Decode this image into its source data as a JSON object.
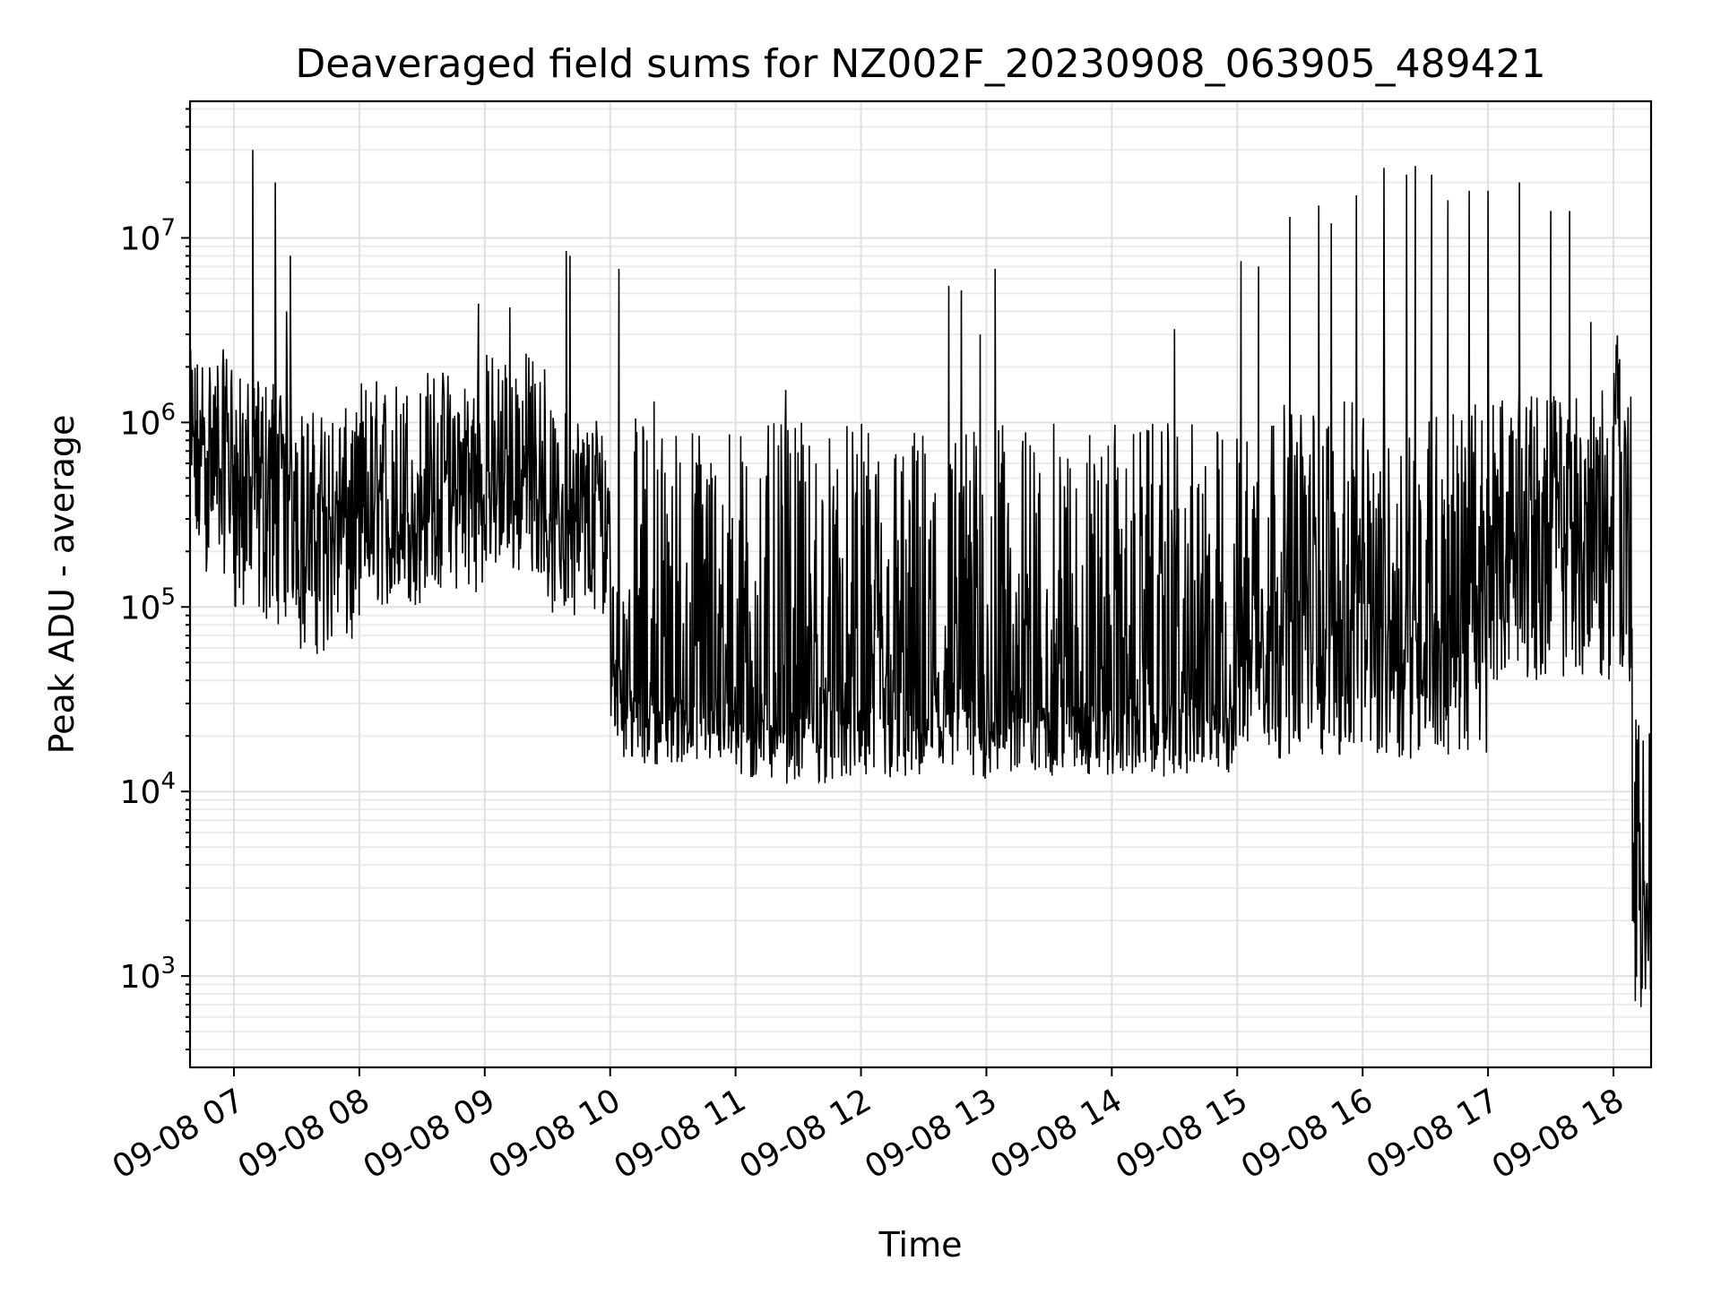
{
  "chart_data": {
    "type": "line",
    "title": "Deaveraged field sums for NZ002F_20230908_063905_489421",
    "xlabel": "Time",
    "ylabel": "Peak ADU - average",
    "yscale": "log",
    "ylim": [
      320,
      55000000
    ],
    "xlim_hours": [
      6.65,
      18.3
    ],
    "grid": true,
    "legend": "none",
    "line_color": "#000000",
    "grid_color": "#e0e0e0",
    "x_ticks": [
      {
        "hour": 7,
        "label": "09-08 07"
      },
      {
        "hour": 8,
        "label": "09-08 08"
      },
      {
        "hour": 9,
        "label": "09-08 09"
      },
      {
        "hour": 10,
        "label": "09-08 10"
      },
      {
        "hour": 11,
        "label": "09-08 11"
      },
      {
        "hour": 12,
        "label": "09-08 12"
      },
      {
        "hour": 13,
        "label": "09-08 13"
      },
      {
        "hour": 14,
        "label": "09-08 14"
      },
      {
        "hour": 15,
        "label": "09-08 15"
      },
      {
        "hour": 16,
        "label": "09-08 16"
      },
      {
        "hour": 17,
        "label": "09-08 17"
      },
      {
        "hour": 18,
        "label": "09-08 18"
      }
    ],
    "y_ticks": [
      {
        "value": 1000,
        "base": "10",
        "exp": "3"
      },
      {
        "value": 10000,
        "base": "10",
        "exp": "4"
      },
      {
        "value": 100000,
        "base": "10",
        "exp": "5"
      },
      {
        "value": 1000000,
        "base": "10",
        "exp": "6"
      },
      {
        "value": 10000000,
        "base": "10",
        "exp": "7"
      }
    ],
    "series": [
      {
        "name": "Peak ADU - average",
        "segments": [
          {
            "from_hour": 6.65,
            "to_hour": 7.0,
            "low": 150000,
            "typical": 700000,
            "high": 2500000
          },
          {
            "from_hour": 7.0,
            "to_hour": 7.5,
            "low": 80000,
            "typical": 500000,
            "high": 1800000
          },
          {
            "from_hour": 7.5,
            "to_hour": 8.0,
            "low": 55000,
            "typical": 300000,
            "high": 1200000
          },
          {
            "from_hour": 8.0,
            "to_hour": 8.5,
            "low": 100000,
            "typical": 280000,
            "high": 1800000
          },
          {
            "from_hour": 8.5,
            "to_hour": 9.0,
            "low": 120000,
            "typical": 450000,
            "high": 2000000
          },
          {
            "from_hour": 9.0,
            "to_hour": 9.5,
            "low": 150000,
            "typical": 500000,
            "high": 2500000
          },
          {
            "from_hour": 9.5,
            "to_hour": 10.0,
            "low": 90000,
            "typical": 280000,
            "high": 1200000
          },
          {
            "from_hour": 10.0,
            "to_hour": 10.1,
            "low": 20000,
            "typical": 60000,
            "high": 900000
          },
          {
            "from_hour": 10.1,
            "to_hour": 11.0,
            "low": 14000,
            "typical": 30000,
            "high": 1100000
          },
          {
            "from_hour": 11.0,
            "to_hour": 13.0,
            "low": 11000,
            "typical": 28000,
            "high": 1000000
          },
          {
            "from_hour": 13.0,
            "to_hour": 15.0,
            "low": 12000,
            "typical": 30000,
            "high": 1000000
          },
          {
            "from_hour": 15.0,
            "to_hour": 17.0,
            "low": 15000,
            "typical": 80000,
            "high": 1300000
          },
          {
            "from_hour": 17.0,
            "to_hour": 18.0,
            "low": 40000,
            "typical": 250000,
            "high": 1500000
          },
          {
            "from_hour": 18.0,
            "to_hour": 18.05,
            "low": 700000,
            "typical": 2000000,
            "high": 3800000
          },
          {
            "from_hour": 18.05,
            "to_hour": 18.15,
            "low": 30000,
            "typical": 200000,
            "high": 1500000
          },
          {
            "from_hour": 18.15,
            "to_hour": 18.3,
            "low": 550,
            "typical": 3000,
            "high": 25000
          }
        ],
        "spikes": [
          {
            "hour": 7.15,
            "value": 30000000
          },
          {
            "hour": 7.33,
            "value": 20000000
          },
          {
            "hour": 7.45,
            "value": 8000000
          },
          {
            "hour": 7.42,
            "value": 4000000
          },
          {
            "hour": 8.95,
            "value": 4400000
          },
          {
            "hour": 9.2,
            "value": 4200000
          },
          {
            "hour": 9.65,
            "value": 8500000
          },
          {
            "hour": 9.68,
            "value": 8000000
          },
          {
            "hour": 10.07,
            "value": 6800000
          },
          {
            "hour": 10.35,
            "value": 1300000
          },
          {
            "hour": 11.4,
            "value": 1500000
          },
          {
            "hour": 12.7,
            "value": 5500000
          },
          {
            "hour": 12.8,
            "value": 5200000
          },
          {
            "hour": 12.95,
            "value": 3000000
          },
          {
            "hour": 13.07,
            "value": 6800000
          },
          {
            "hour": 14.5,
            "value": 3200000
          },
          {
            "hour": 15.03,
            "value": 7500000
          },
          {
            "hour": 15.17,
            "value": 7000000
          },
          {
            "hour": 15.42,
            "value": 13000000
          },
          {
            "hour": 15.65,
            "value": 15000000
          },
          {
            "hour": 15.75,
            "value": 12000000
          },
          {
            "hour": 15.95,
            "value": 17000000
          },
          {
            "hour": 16.17,
            "value": 24000000
          },
          {
            "hour": 16.35,
            "value": 22000000
          },
          {
            "hour": 16.42,
            "value": 24500000
          },
          {
            "hour": 16.55,
            "value": 22000000
          },
          {
            "hour": 16.68,
            "value": 16000000
          },
          {
            "hour": 16.85,
            "value": 18000000
          },
          {
            "hour": 17.0,
            "value": 18000000
          },
          {
            "hour": 17.25,
            "value": 20000000
          },
          {
            "hour": 17.5,
            "value": 14000000
          },
          {
            "hour": 17.65,
            "value": 14000000
          },
          {
            "hour": 17.82,
            "value": 3500000
          }
        ]
      }
    ]
  }
}
